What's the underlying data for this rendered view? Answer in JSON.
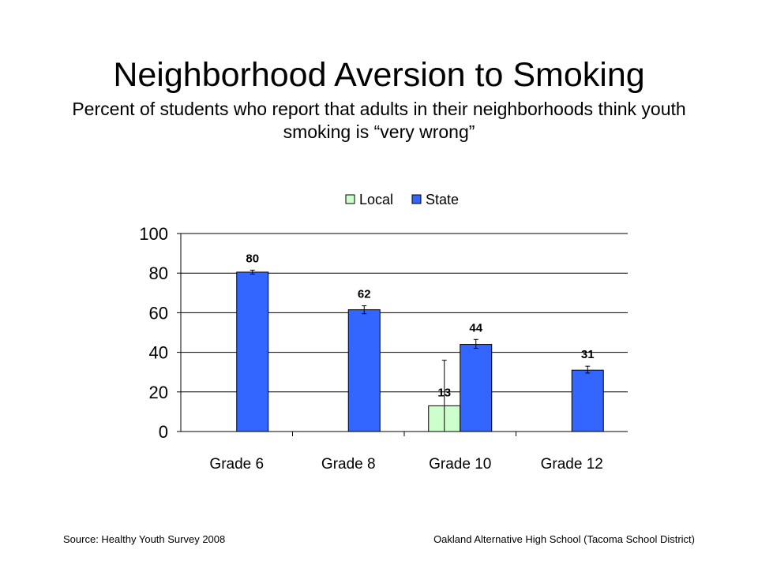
{
  "slide": {
    "title": "Neighborhood Aversion to Smoking",
    "subtitle": "Percent of students who report that adults in their neighborhoods think youth smoking is “very wrong”",
    "source": "Source: Healthy Youth Survey 2008",
    "school": "Oakland Alternative High School (Tacoma School District)"
  },
  "chart_data": {
    "type": "bar",
    "categories": [
      "Grade 6",
      "Grade 8",
      "Grade 10",
      "Grade 12"
    ],
    "series": [
      {
        "name": "Local",
        "color": "#ccffcc",
        "values": [
          null,
          null,
          13,
          null
        ],
        "labels": [
          "",
          "",
          "13",
          ""
        ],
        "error": [
          null,
          null,
          [
            0,
            36
          ],
          null
        ]
      },
      {
        "name": "State",
        "color": "#3366ff",
        "values": [
          80.5,
          61.5,
          44,
          31
        ],
        "labels": [
          "80",
          "62",
          "44",
          "31"
        ],
        "error": [
          [
            79.5,
            81.5
          ],
          [
            59.5,
            63.5
          ],
          [
            42,
            46.5
          ],
          [
            29.5,
            33
          ]
        ]
      }
    ],
    "ylim": [
      0,
      100
    ],
    "yticks": [
      "0",
      "20",
      "40",
      "60",
      "80",
      "100"
    ],
    "grid": true,
    "legend": "top"
  }
}
